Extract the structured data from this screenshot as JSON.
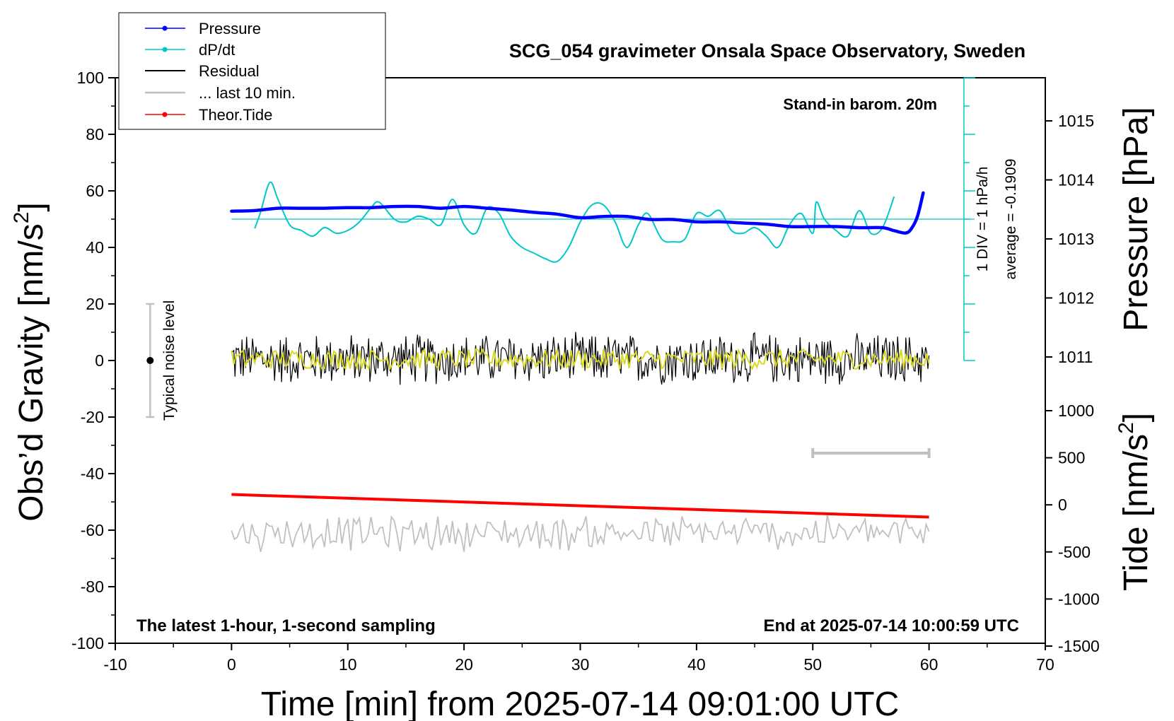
{
  "chart_data": {
    "type": "line",
    "title": "SCG_054 gravimeter Onsala Space Observatory, Sweden",
    "xlabel": "Time [min] from 2025-07-14 09:01:00 UTC",
    "ylabel_left_main": "Obs’d Gravity [nm/s",
    "ylabel_left_sup": "2",
    "ylabel_left_end": "]",
    "ylabel_right_top": "Pressure [hPa]",
    "ylabel_right_bottom_main": "Tide [nm/s",
    "ylabel_right_bottom_sup": "2",
    "ylabel_right_bottom_end": "]",
    "xlim": [
      -10,
      70
    ],
    "ylim": [
      -100,
      100
    ],
    "pressure_ylim": [
      1010,
      1016
    ],
    "tide_ylim": [
      -1500,
      1000
    ],
    "x_ticks": [
      "-10",
      "0",
      "10",
      "20",
      "30",
      "40",
      "50",
      "60",
      "70"
    ],
    "y_ticks": [
      "-100",
      "-80",
      "-60",
      "-40",
      "-20",
      "0",
      "20",
      "40",
      "60",
      "80",
      "100"
    ],
    "pressure_ticks": [
      "1011",
      "1012",
      "1013",
      "1014",
      "1015"
    ],
    "tide_ticks": [
      "-1500",
      "-1000",
      "-500",
      "0",
      "500",
      "1000"
    ],
    "legend": {
      "position": "top-left",
      "entries": [
        {
          "label": "Pressure",
          "color": "#0000ff",
          "marker": true
        },
        {
          "label": "dP/dt",
          "color": "#00c8c8",
          "marker": true
        },
        {
          "label": "Residual",
          "color": "#000000",
          "marker": false
        },
        {
          "label": "... last 10 min.",
          "color": "#c0c0c0",
          "marker": false
        },
        {
          "label": "Theor.Tide",
          "color": "#ff0000",
          "marker": true
        }
      ]
    },
    "annotations": {
      "barometer": "Stand-in barom. 20m",
      "div_label": "1 DIV = 1 hPa/h",
      "average_label": "average = -0.1909",
      "noise_label": "Typical noise level",
      "bottom_left": "The latest 1-hour, 1-second sampling",
      "bottom_right": "End at 2025-07-14 10:00:59 UTC"
    },
    "series": [
      {
        "name": "Pressure",
        "color": "#0000ff",
        "x": [
          0,
          2,
          4,
          6,
          8,
          10,
          12,
          14,
          16,
          18,
          20,
          22,
          24,
          26,
          28,
          30,
          32,
          34,
          36,
          38,
          40,
          42,
          44,
          46,
          48,
          50,
          52,
          54,
          56,
          57,
          58,
          58.5,
          59,
          59.5
        ],
        "y": [
          1013.47,
          1013.48,
          1013.52,
          1013.52,
          1013.52,
          1013.53,
          1013.53,
          1013.55,
          1013.55,
          1013.52,
          1013.55,
          1013.52,
          1013.49,
          1013.45,
          1013.42,
          1013.36,
          1013.38,
          1013.38,
          1013.33,
          1013.33,
          1013.29,
          1013.29,
          1013.27,
          1013.25,
          1013.21,
          1013.21,
          1013.21,
          1013.19,
          1013.19,
          1013.14,
          1013.1,
          1013.18,
          1013.38,
          1013.78
        ]
      },
      {
        "name": "dP/dt",
        "color": "#00c8c8",
        "x": [
          2,
          2.5,
          3.3,
          4,
          5,
          6,
          7,
          8,
          9,
          10,
          11,
          12,
          12.7,
          14,
          15,
          16,
          17,
          18,
          19,
          20,
          21,
          22,
          23,
          24,
          25,
          26,
          27,
          28,
          29,
          30,
          31,
          32,
          33,
          34,
          35,
          35.8,
          37,
          38,
          39,
          40,
          41,
          42,
          43,
          44,
          45,
          46,
          47,
          48,
          49,
          50,
          50.3,
          51,
          52,
          53,
          54,
          55,
          56,
          57
        ],
        "y": [
          46.7,
          52.5,
          63,
          57,
          48,
          46,
          44,
          47,
          45,
          46,
          49,
          54,
          56,
          50,
          49,
          51,
          50,
          48,
          57,
          48,
          45,
          54,
          52,
          44,
          40,
          38,
          36,
          35,
          40,
          49,
          55,
          55,
          49,
          40,
          48,
          52,
          43,
          42,
          43,
          52,
          51,
          53,
          46,
          45,
          47,
          44,
          40,
          48,
          52,
          45,
          56,
          50,
          46,
          44,
          53,
          45,
          47,
          58
        ]
      },
      {
        "name": "Residual",
        "color": "#000000",
        "x_range": [
          0,
          60
        ],
        "y_mean": 0.5,
        "y_amplitude": 10
      },
      {
        "name": "... last 10 min.",
        "color": "#c0c0c0",
        "x_range": [
          0,
          60
        ],
        "y_mean": -61,
        "y_amplitude": 7,
        "bar_x": [
          50,
          60
        ]
      },
      {
        "name": "Theor.Tide",
        "color": "#ff0000",
        "x": [
          0,
          60
        ],
        "y": [
          110,
          -130
        ]
      }
    ],
    "noise_level": {
      "x": -7,
      "range": [
        -20,
        20
      ]
    },
    "dpdt_zero_y": 50,
    "dpdt_axis_x": 63
  }
}
